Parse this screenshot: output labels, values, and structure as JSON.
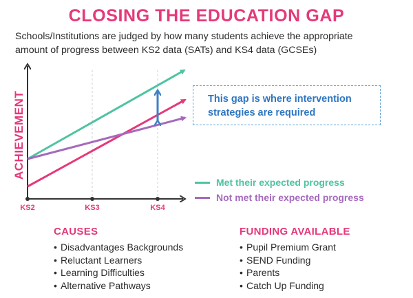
{
  "header": {
    "title": "CLOSING THE EDUCATION GAP",
    "subtitle_line1": "Schools/Institutions are judged by how many students achieve the appropriate",
    "subtitle_line2": "amount of progress between KS2 data (SATs) and KS4 data (GCSEs)"
  },
  "diagram": {
    "y_axis_label": "ACHIEVEMENT",
    "x_ticks": [
      "KS2",
      "KS3",
      "KS4"
    ],
    "gap_note_line1": "This gap is where intervention",
    "gap_note_line2": "strategies are required",
    "legend": {
      "met": "Met their expected progress",
      "not_met": "Not met their expected progress"
    },
    "colors": {
      "met": "#4fc3a1",
      "not_met": "#a569bd",
      "low_start": "#e4397a",
      "gap_arrow": "#3b82c4",
      "axis": "#333333"
    }
  },
  "causes": {
    "heading": "CAUSES",
    "items": [
      "Disadvantages Backgrounds",
      "Reluctant Learners",
      "Learning Difficulties",
      "Alternative Pathways"
    ]
  },
  "funding": {
    "heading": "FUNDING AVAILABLE",
    "items": [
      "Pupil Premium Grant",
      "SEND Funding",
      "Parents",
      "Catch Up Funding"
    ]
  }
}
